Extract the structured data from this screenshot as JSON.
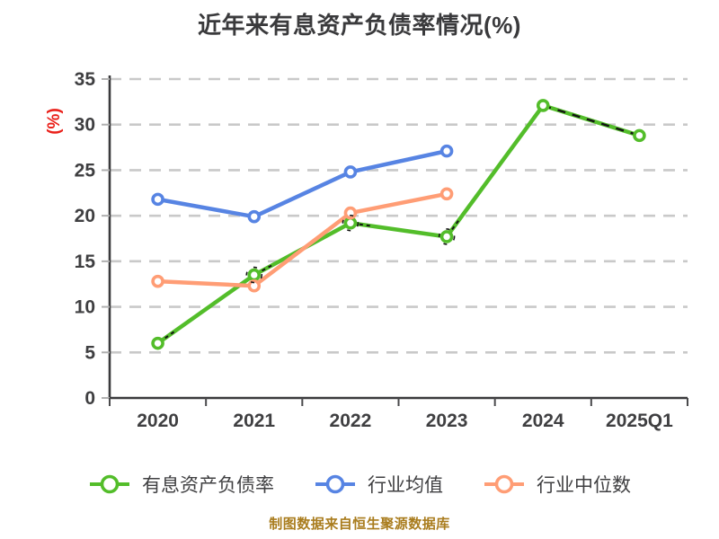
{
  "title": "近年来有息资产负债率情况(%)",
  "y_axis_label": "(%)",
  "caption": "制图数据来自恒生聚源数据库",
  "colors": {
    "title_text": "#3a3a3c",
    "axis_text": "#3f3f41",
    "axis_line": "#3a3a3c",
    "gridline": "#c9c9c9",
    "ylabel_red": "#ea201a",
    "caption_gold": "#a97c1d",
    "dash_overlay": "#141414",
    "marker_fill": "#ffffff"
  },
  "chart_data": {
    "type": "line",
    "categories": [
      "2020",
      "2021",
      "2022",
      "2023",
      "2024",
      "2025Q1"
    ],
    "series": [
      {
        "name": "有息资产负债率",
        "color": "#53bd2a",
        "values": [
          6.0,
          13.5,
          19.2,
          17.7,
          32.1,
          28.8
        ],
        "dashed_overlay_last_segment": true
      },
      {
        "name": "行业均值",
        "color": "#5784e3",
        "values": [
          21.8,
          19.9,
          24.8,
          27.1,
          null,
          null
        ]
      },
      {
        "name": "行业中位数",
        "color": "#ff9d75",
        "values": [
          12.8,
          12.3,
          20.3,
          22.4,
          null,
          null
        ]
      }
    ],
    "ylim": [
      0,
      35
    ],
    "yticks": [
      0,
      5,
      10,
      15,
      20,
      25,
      30,
      35
    ],
    "grid": "horizontal-dashed",
    "legend_position": "bottom",
    "marker_style": "white-filled circle with colored ring"
  }
}
